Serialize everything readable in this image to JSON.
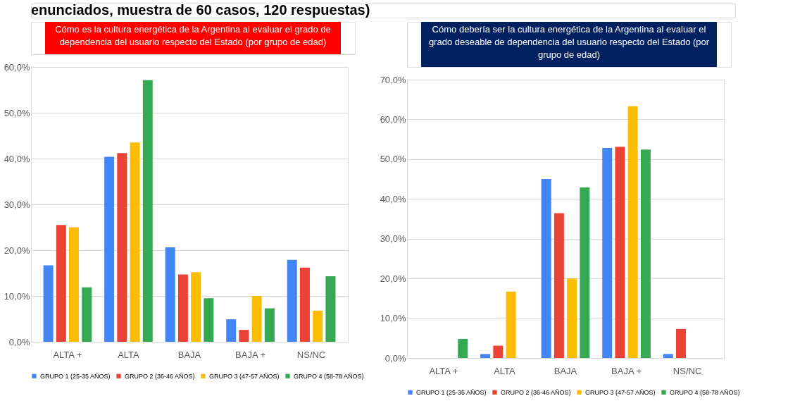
{
  "chart_data": [
    {
      "type": "bar",
      "title": "Cómo es la cultura energética de la Argentina al evaluar el grado de dependencia del usuario respecto del Estado (por grupo de edad)",
      "annotations": [
        "enunciados, muestra de 60 casos, 120 respuestas)"
      ],
      "categories": [
        "ALTA +",
        "ALTA",
        "BAJA",
        "BAJA +",
        "NS/NC"
      ],
      "series": [
        {
          "name": "GRUPO 1 (25-35 AÑOS)",
          "color": "#4285f4",
          "values": [
            16.7,
            40.4,
            20.6,
            4.9,
            17.9
          ]
        },
        {
          "name": "GRUPO 2 (36-46 AÑOS)",
          "color": "#ea4335",
          "values": [
            25.5,
            41.2,
            14.7,
            2.6,
            16.2
          ]
        },
        {
          "name": "GRUPO 3 (47-57 AÑOS)",
          "color": "#fbbc04",
          "values": [
            25.0,
            43.5,
            15.2,
            10.0,
            6.8
          ]
        },
        {
          "name": "GRUPO 4 (58-78 AÑOS)",
          "color": "#34a853",
          "values": [
            11.9,
            57.1,
            9.5,
            7.3,
            14.3
          ]
        }
      ],
      "ylim": [
        0,
        60
      ],
      "yticks": [
        {
          "value": 0,
          "label": "0,0%"
        },
        {
          "value": 10,
          "label": "10,0%"
        },
        {
          "value": 20,
          "label": "20,0%"
        },
        {
          "value": 30,
          "label": "30,0%"
        },
        {
          "value": 40,
          "label": "40,0%"
        },
        {
          "value": 50,
          "label": "50,0%"
        },
        {
          "value": 60,
          "label": "60,0%"
        }
      ],
      "grid": "y",
      "legend": "bottom"
    },
    {
      "type": "bar",
      "title": "Cómo debería ser la cultura energética de la Argentina al evaluar el grado deseable de dependencia del usuario respecto del Estado (por grupo de edad)",
      "categories": [
        "ALTA +",
        "ALTA",
        "BAJA",
        "BAJA +",
        "NS/NC"
      ],
      "series": [
        {
          "name": "GRUPO 1 (25-35 AÑOS)",
          "color": "#4285f4",
          "values": [
            0,
            1.0,
            45.0,
            52.8,
            1.0
          ]
        },
        {
          "name": "GRUPO 2 (36-46 AÑOS)",
          "color": "#ea4335",
          "values": [
            0,
            3.1,
            36.4,
            53.1,
            7.3
          ]
        },
        {
          "name": "GRUPO 3 (47-57 AÑOS)",
          "color": "#fbbc04",
          "values": [
            0,
            16.7,
            20.0,
            63.3,
            0
          ]
        },
        {
          "name": "GRUPO 4 (58-78 AÑOS)",
          "color": "#34a853",
          "values": [
            4.8,
            0,
            42.9,
            52.4,
            0
          ]
        }
      ],
      "ylim": [
        0,
        70
      ],
      "yticks": [
        {
          "value": 0,
          "label": "0,0%"
        },
        {
          "value": 10,
          "label": "10,0%"
        },
        {
          "value": 20,
          "label": "20,0%"
        },
        {
          "value": 30,
          "label": "30,0%"
        },
        {
          "value": 40,
          "label": "40,0%"
        },
        {
          "value": 50,
          "label": "50,0%"
        },
        {
          "value": 60,
          "label": "60,0%"
        },
        {
          "value": 70,
          "label": "70,0%"
        }
      ],
      "grid": "y",
      "legend": "bottom"
    }
  ]
}
